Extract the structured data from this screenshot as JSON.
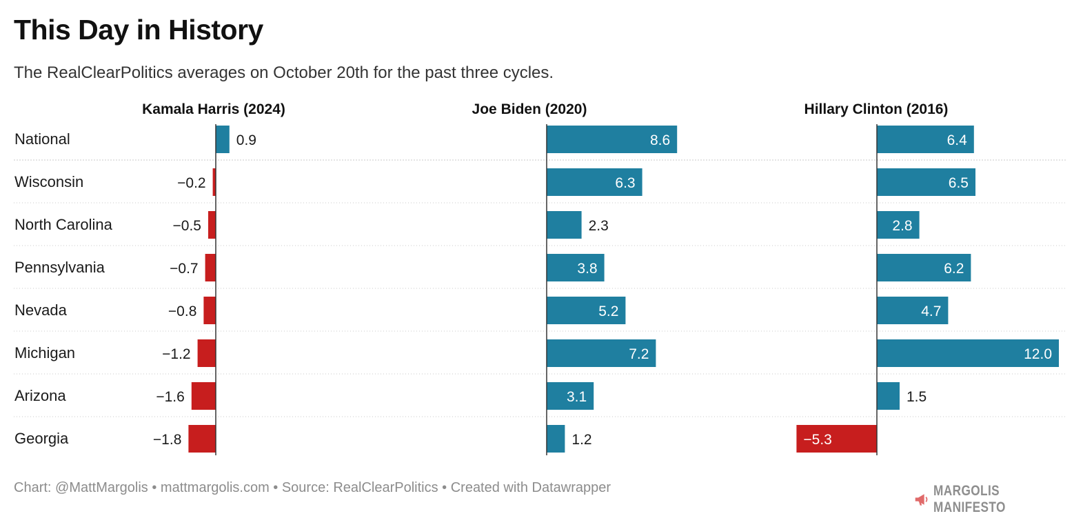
{
  "header": {
    "title": "This Day in History",
    "subtitle": "The RealClearPolitics averages on October 20th for the past three cycles."
  },
  "footer": {
    "credit": "Chart: @MattMargolis • mattmargolis.com • Source: RealClearPolitics • Created with Datawrapper"
  },
  "logo": {
    "text": "MARGOLIS MANIFESTO",
    "icon": "megaphone-icon",
    "color": "#e06a6a"
  },
  "colors": {
    "positive": "#1f7fa0",
    "negative": "#c71e1e",
    "grid": "#c8c8c8",
    "axis": "#333333"
  },
  "chart_data": {
    "type": "bar",
    "orientation": "horizontal",
    "categories": [
      "National",
      "Wisconsin",
      "North Carolina",
      "Pennsylvania",
      "Nevada",
      "Michigan",
      "Arizona",
      "Georgia"
    ],
    "series": [
      {
        "name": "Kamala Harris (2024)",
        "values": [
          0.9,
          -0.2,
          -0.5,
          -0.7,
          -0.8,
          -1.2,
          -1.6,
          -1.8
        ],
        "labels": [
          "0.9",
          "−0.2",
          "−0.5",
          "−0.7",
          "−0.8",
          "−1.2",
          "−1.6",
          "−1.8"
        ]
      },
      {
        "name": "Joe Biden (2020)",
        "values": [
          8.6,
          6.3,
          2.3,
          3.8,
          5.2,
          7.2,
          3.1,
          1.2
        ],
        "labels": [
          "8.6",
          "6.3",
          "2.3",
          "3.8",
          "5.2",
          "7.2",
          "3.1",
          "1.2"
        ]
      },
      {
        "name": "Hillary Clinton (2016)",
        "values": [
          6.4,
          6.5,
          2.8,
          6.2,
          4.7,
          12.0,
          1.5,
          -5.3
        ],
        "labels": [
          "6.4",
          "6.5",
          "2.8",
          "6.2",
          "4.7",
          "12.0",
          "1.5",
          "−5.3"
        ]
      }
    ],
    "grid": true
  }
}
